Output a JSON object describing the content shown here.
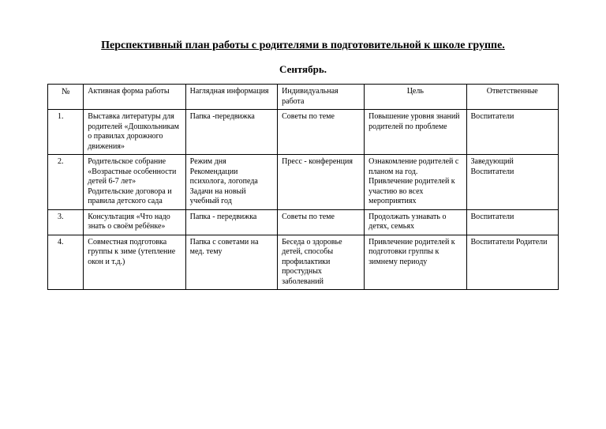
{
  "title": "Перспективный план работы с родителями в подготовительной к школе группе.",
  "subtitle": "Сентябрь.",
  "table": {
    "columns": {
      "num": "№",
      "active": "Активная форма работы",
      "visual": "Наглядная информация",
      "indiv": "Индивидуальная работа",
      "goal": "Цель",
      "resp": "Ответственные"
    },
    "rows": [
      {
        "num": "1.",
        "active": "Выставка литературы для родителей «Дошкольникам о правилах дорожного движения»",
        "visual": "Папка -передвижка",
        "indiv": "Советы по теме",
        "goal": "Повышение уровня знаний родителей по проблеме",
        "resp": "Воспитатели"
      },
      {
        "num": "2.",
        "active": "Родительское собрание «Возрастные особенности детей 6-7 лет»\nРодительские договора и правила детского сада",
        "visual": "Режим дня\nРекомендации психолога, логопеда\nЗадачи на новый учебный год",
        "indiv": "Пресс - конференция",
        "goal": "Ознакомление родителей с планом на год. Привлечение родителей к участию во всех мероприятиях",
        "resp": "Заведующий\nВоспитатели"
      },
      {
        "num": "3.",
        "active": "Консультация «Что надо знать о своём ребёнке»",
        "visual": "Папка - передвижка",
        "indiv": "Советы по теме",
        "goal": "Продолжать узнавать о детях, семьях",
        "resp": "Воспитатели"
      },
      {
        "num": "4.",
        "active": "Совместная подготовка группы к зиме (утепление окон и т.д.)",
        "visual": "Папка с советами на мед. тему",
        "indiv": "Беседа о здоровье детей, способы профилактики простудных заболеваний",
        "goal": "Привлечение родителей к подготовки группы к зимнему периоду",
        "resp": "Воспитатели\nРодители"
      }
    ]
  }
}
